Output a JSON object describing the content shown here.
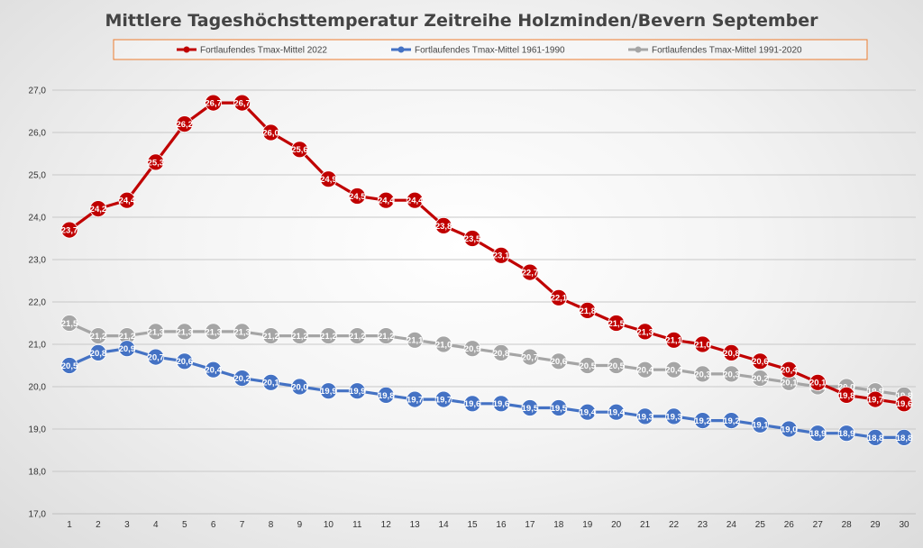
{
  "chart_data": {
    "type": "line",
    "title": "Mittlere Tageshöchsttemperatur Zeitreihe Holzminden/Bevern September",
    "xlabel": "",
    "ylabel": "",
    "ylim": [
      17.0,
      27.0
    ],
    "ytick_step": 1.0,
    "grid": true,
    "legend_position": "top",
    "categories": [
      "1",
      "2",
      "3",
      "4",
      "5",
      "6",
      "7",
      "8",
      "9",
      "10",
      "11",
      "12",
      "13",
      "14",
      "15",
      "16",
      "17",
      "18",
      "19",
      "20",
      "21",
      "22",
      "23",
      "24",
      "25",
      "26",
      "27",
      "28",
      "29",
      "30"
    ],
    "series": [
      {
        "name": "Fortlaufendes Tmax-Mittel 2022",
        "color": "#c00000",
        "values": [
          23.7,
          24.2,
          24.4,
          25.3,
          26.2,
          26.7,
          26.7,
          26.0,
          25.6,
          24.9,
          24.5,
          24.4,
          24.4,
          23.8,
          23.5,
          23.1,
          22.7,
          22.1,
          21.8,
          21.5,
          21.3,
          21.1,
          21.0,
          20.8,
          20.6,
          20.4,
          20.1,
          19.8,
          19.7,
          19.6
        ],
        "labels": [
          "23,7",
          "24,2",
          "24,4",
          "25,3",
          "26,2",
          "26,7",
          "26,7",
          "26,0",
          "25,6",
          "24,9",
          "24,5",
          "24,4",
          "24,4",
          "23,8",
          "23,5",
          "23,1",
          "22,7",
          "22,1",
          "21,8",
          "21,5",
          "21,3",
          "21,1",
          "21,0",
          "20,8",
          "20,6",
          "20,4",
          "20,1",
          "19,8",
          "19,7",
          "19,6"
        ]
      },
      {
        "name": "Fortlaufendes Tmax-Mittel 1961-1990",
        "color": "#4472c4",
        "values": [
          20.5,
          20.8,
          20.9,
          20.7,
          20.6,
          20.4,
          20.2,
          20.1,
          20.0,
          19.9,
          19.9,
          19.8,
          19.7,
          19.7,
          19.6,
          19.6,
          19.5,
          19.5,
          19.4,
          19.4,
          19.3,
          19.3,
          19.2,
          19.2,
          19.1,
          19.0,
          18.9,
          18.9,
          18.8,
          18.8
        ],
        "labels": [
          "20,5",
          "20,8",
          "20,9",
          "20,7",
          "20,6",
          "20,4",
          "20,2",
          "20,1",
          "20,0",
          "19,9",
          "19,9",
          "19,8",
          "19,7",
          "19,7",
          "19,6",
          "19,6",
          "19,5",
          "19,5",
          "19,4",
          "19,4",
          "19,3",
          "19,3",
          "19,2",
          "19,2",
          "19,1",
          "19,0",
          "18,9",
          "18,9",
          "18,8",
          "18,8"
        ]
      },
      {
        "name": "Fortlaufendes Tmax-Mittel 1991-2020",
        "color": "#a5a5a5",
        "values": [
          21.5,
          21.2,
          21.2,
          21.3,
          21.3,
          21.3,
          21.3,
          21.2,
          21.2,
          21.2,
          21.2,
          21.2,
          21.1,
          21.0,
          20.9,
          20.8,
          20.7,
          20.6,
          20.5,
          20.5,
          20.4,
          20.4,
          20.3,
          20.3,
          20.2,
          20.1,
          20.0,
          20.0,
          19.9,
          19.8
        ],
        "labels": [
          "21,5",
          "21,2",
          "21,2",
          "21,3",
          "21,3",
          "21,3",
          "21,3",
          "21,2",
          "21,2",
          "21,2",
          "21,2",
          "21,2",
          "21,1",
          "21,0",
          "20,9",
          "20,8",
          "20,7",
          "20,6",
          "20,5",
          "20,5",
          "20,4",
          "20,4",
          "20,3",
          "20,3",
          "20,2",
          "20,1",
          "20,0",
          "20,0",
          "19,9",
          "19,8"
        ]
      }
    ],
    "yticks": [
      "17,0",
      "18,0",
      "19,0",
      "20,0",
      "21,0",
      "22,0",
      "23,0",
      "24,0",
      "25,0",
      "26,0",
      "27,0"
    ],
    "colors": {
      "legend_border": "#ed7d31",
      "grid": "#c8c8c8",
      "axis": "#bfbfbf"
    }
  }
}
